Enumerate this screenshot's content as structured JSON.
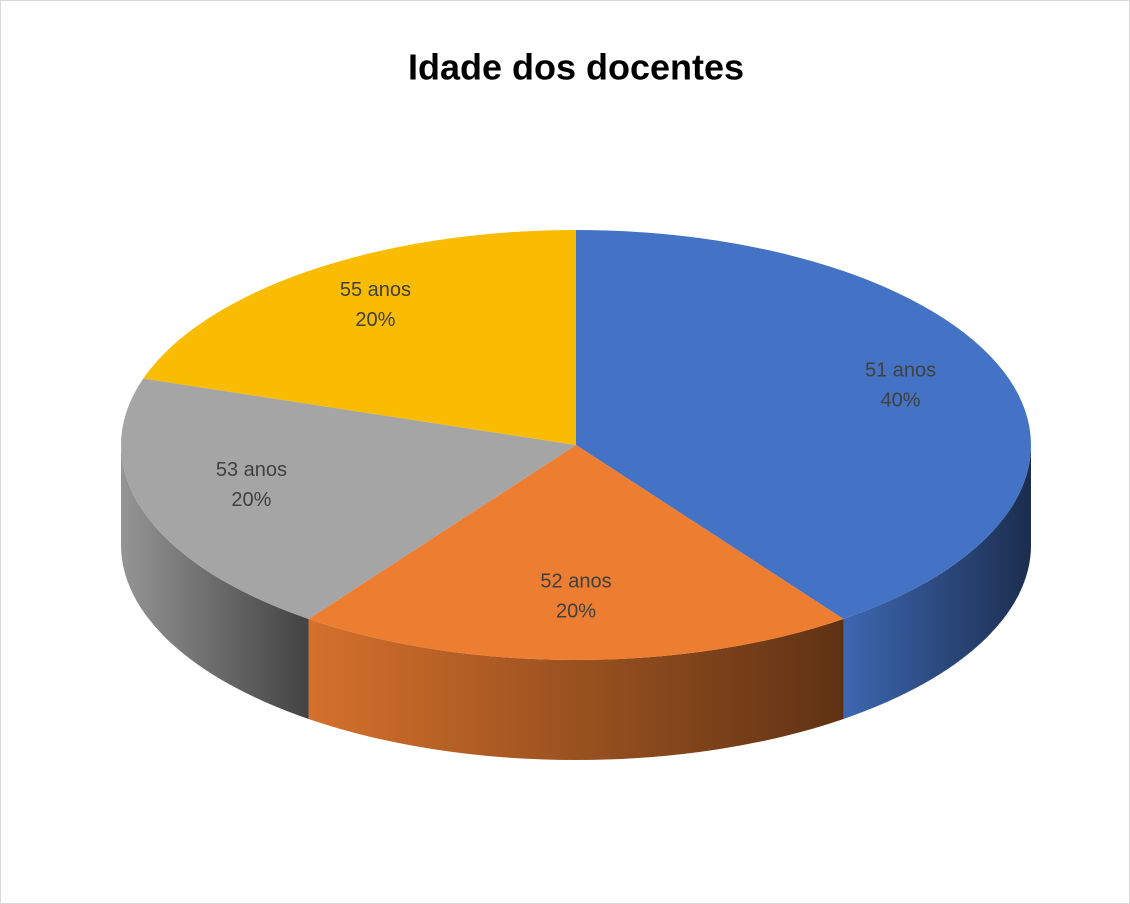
{
  "chart_data": {
    "type": "pie",
    "title": "Idade dos docentes",
    "categories": [
      "51 anos",
      "52 anos",
      "53 anos",
      "55 anos"
    ],
    "values": [
      40,
      20,
      20,
      20
    ],
    "value_labels": [
      "40%",
      "20%",
      "20%",
      "20%"
    ],
    "colors": [
      "#4472c4",
      "#ed7d31",
      "#a5a5a5",
      "#f9bc00"
    ]
  }
}
